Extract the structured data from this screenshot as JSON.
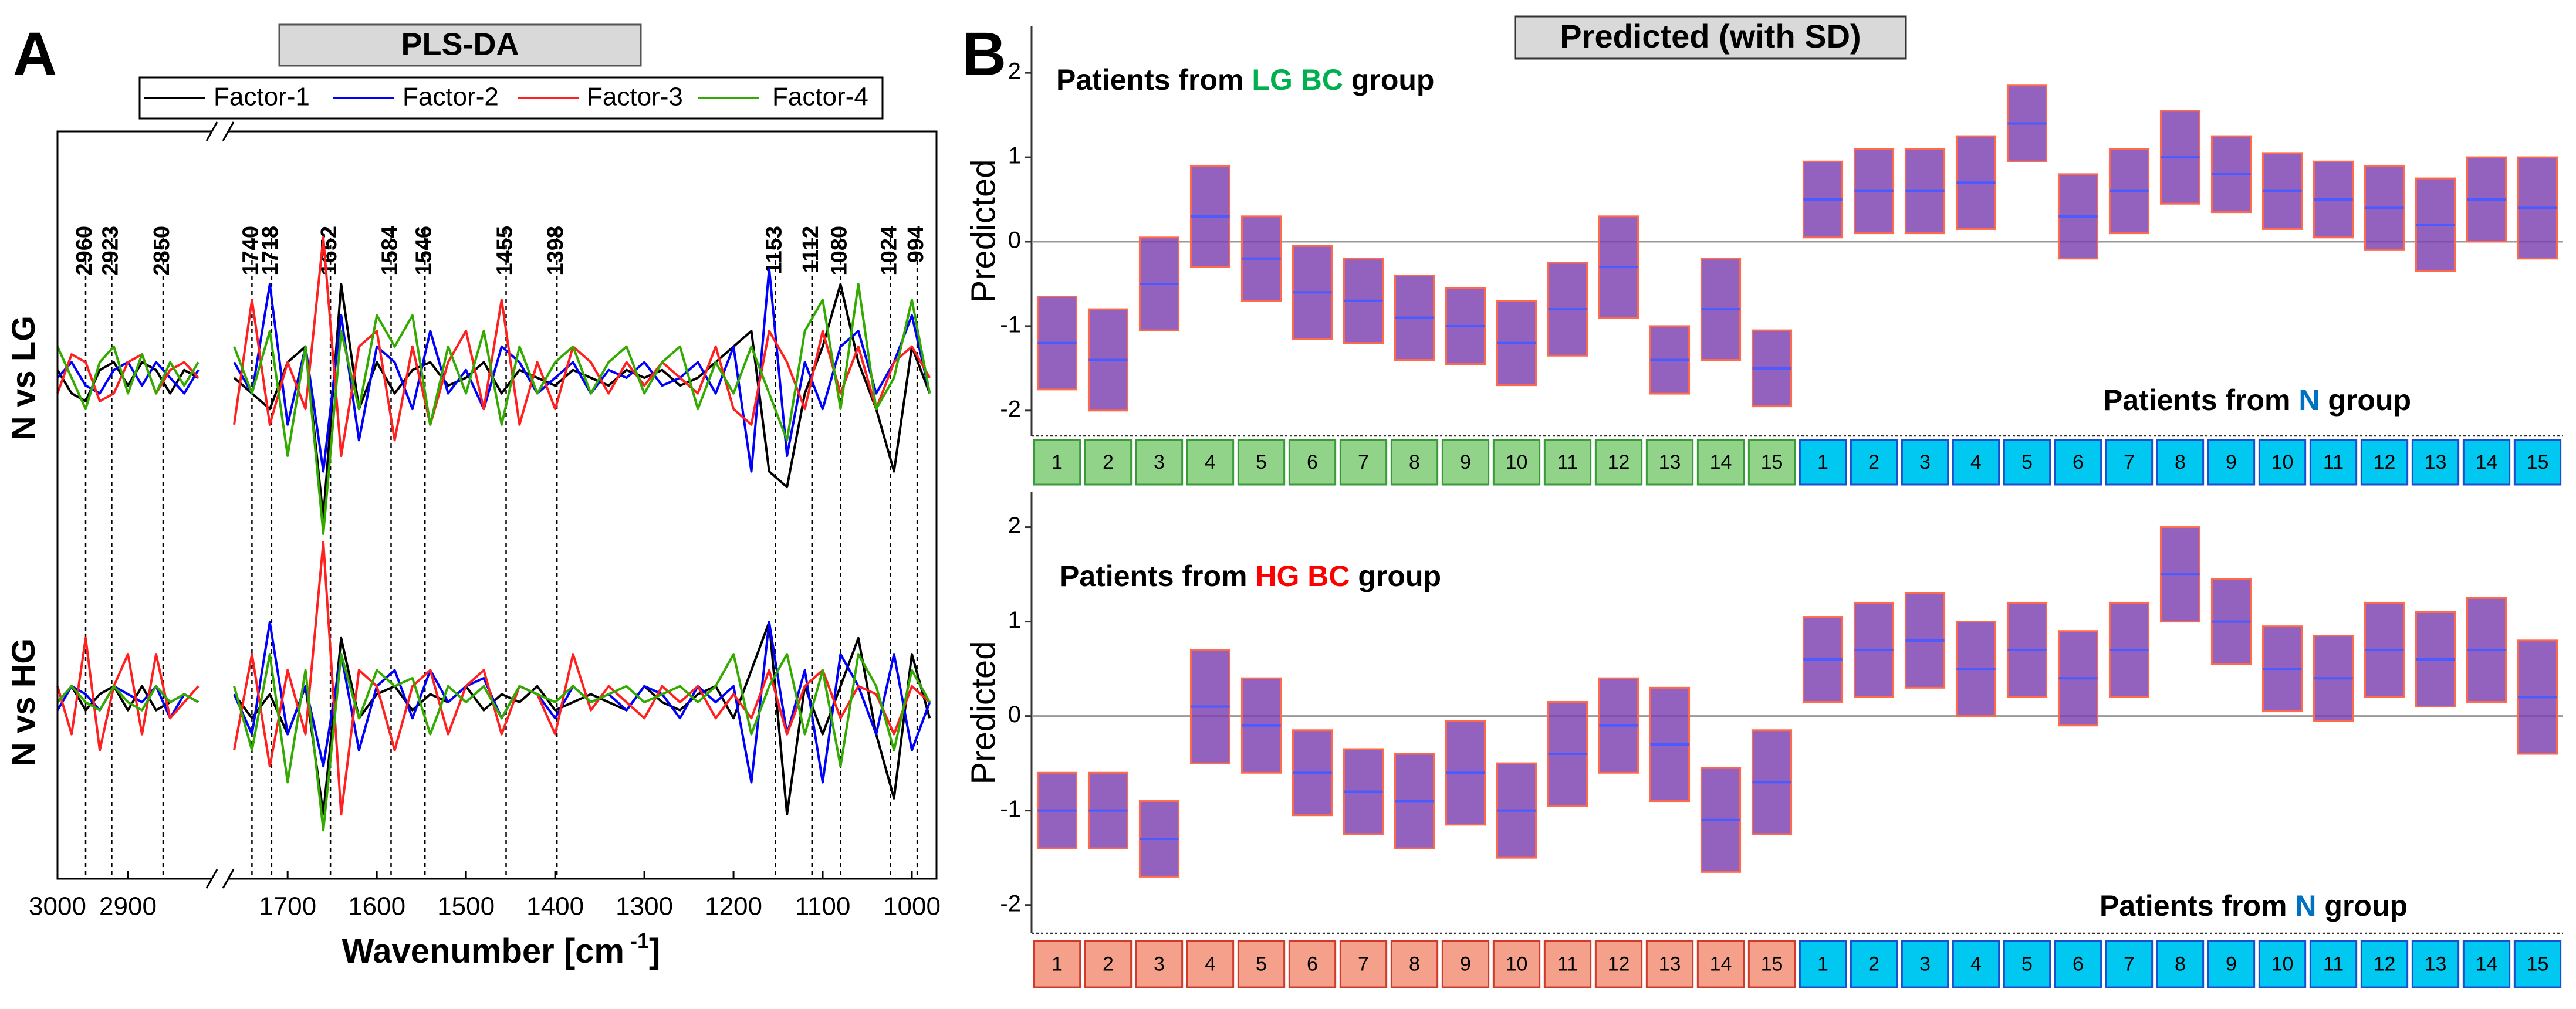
{
  "chart_data": [
    {
      "type": "line",
      "panel_label": "A",
      "title": "PLS-DA",
      "ylabel": "N vs LG",
      "x": [
        3000,
        2980,
        2960,
        2940,
        2920,
        2900,
        2880,
        2860,
        2840,
        2820,
        2800,
        1780,
        1760,
        1740,
        1720,
        1700,
        1680,
        1660,
        1640,
        1620,
        1600,
        1580,
        1560,
        1540,
        1520,
        1500,
        1480,
        1460,
        1440,
        1420,
        1400,
        1380,
        1360,
        1340,
        1320,
        1300,
        1280,
        1260,
        1240,
        1220,
        1200,
        1180,
        1160,
        1140,
        1120,
        1100,
        1080,
        1060,
        1040,
        1020,
        1000,
        980
      ],
      "series": [
        {
          "name": "Factor-1",
          "color": "#000000",
          "values": [
            0.05,
            -0.1,
            -0.15,
            0.05,
            0.1,
            -0.05,
            0.1,
            0.05,
            -0.1,
            0.05,
            0.0,
            null,
            0.0,
            -0.1,
            -0.2,
            0.1,
            0.2,
            -0.9,
            0.6,
            -0.2,
            0.1,
            -0.1,
            0.05,
            0.1,
            -0.05,
            0.0,
            0.1,
            -0.1,
            0.05,
            0.0,
            -0.05,
            0.05,
            0.0,
            -0.05,
            0.05,
            0.0,
            0.05,
            -0.05,
            0.0,
            0.1,
            0.2,
            0.3,
            -0.6,
            -0.7,
            -0.1,
            0.2,
            0.6,
            0.1,
            -0.2,
            -0.6,
            0.2,
            -0.1
          ]
        },
        {
          "name": "Factor-2",
          "color": "#0000ff",
          "values": [
            0.0,
            0.1,
            -0.05,
            -0.1,
            0.05,
            0.1,
            -0.05,
            0.1,
            0.0,
            -0.1,
            0.05,
            null,
            0.1,
            -0.1,
            0.6,
            -0.3,
            0.2,
            -0.6,
            0.4,
            -0.4,
            0.2,
            0.1,
            -0.2,
            0.3,
            -0.1,
            0.05,
            -0.2,
            0.2,
            0.1,
            -0.1,
            0.0,
            0.1,
            -0.1,
            0.05,
            0.0,
            0.1,
            -0.05,
            0.0,
            0.1,
            -0.1,
            0.2,
            -0.6,
            0.7,
            -0.5,
            0.1,
            -0.2,
            0.2,
            0.3,
            -0.1,
            0.1,
            0.4,
            -0.1
          ]
        },
        {
          "name": "Factor-3",
          "color": "#ff2020",
          "values": [
            -0.1,
            0.15,
            0.1,
            -0.15,
            -0.1,
            0.1,
            0.15,
            -0.1,
            0.05,
            0.1,
            0.0,
            null,
            -0.3,
            0.5,
            -0.3,
            0.1,
            -0.2,
            0.9,
            -0.5,
            0.2,
            0.3,
            -0.4,
            0.2,
            -0.3,
            0.1,
            0.3,
            -0.2,
            0.5,
            -0.3,
            0.1,
            -0.2,
            0.2,
            0.1,
            -0.1,
            0.1,
            -0.05,
            0.1,
            0.0,
            -0.1,
            0.2,
            -0.2,
            -0.3,
            0.3,
            0.1,
            -0.2,
            0.3,
            -0.1,
            0.2,
            -0.2,
            0.1,
            0.2,
            0.0
          ]
        },
        {
          "name": "Factor-4",
          "color": "#33aa00",
          "values": [
            0.2,
            0.0,
            -0.2,
            0.1,
            0.2,
            -0.1,
            0.15,
            -0.1,
            0.1,
            -0.05,
            0.1,
            null,
            0.2,
            -0.1,
            0.3,
            -0.5,
            0.2,
            -1.0,
            0.3,
            -0.2,
            0.4,
            0.2,
            0.4,
            -0.3,
            0.2,
            -0.1,
            0.3,
            -0.3,
            0.2,
            -0.1,
            0.1,
            0.2,
            -0.1,
            0.1,
            0.2,
            -0.1,
            0.1,
            0.2,
            -0.2,
            0.1,
            -0.1,
            0.2,
            -0.1,
            -0.4,
            0.3,
            0.5,
            -0.2,
            0.6,
            -0.2,
            0.0,
            0.5,
            -0.1
          ]
        }
      ],
      "ylim": [
        -1,
        1
      ],
      "xlim": [
        3000,
        975
      ],
      "x_break": [
        2790,
        1760
      ],
      "xmarkers": [
        2960,
        2923,
        2850,
        1740,
        1718,
        1652,
        1584,
        1546,
        1455,
        1398,
        1153,
        1112,
        1080,
        1024,
        994
      ]
    },
    {
      "type": "line",
      "ylabel": "N vs HG",
      "x": [
        3000,
        2980,
        2960,
        2940,
        2920,
        2900,
        2880,
        2860,
        2840,
        2820,
        2800,
        1780,
        1760,
        1740,
        1720,
        1700,
        1680,
        1660,
        1640,
        1620,
        1600,
        1580,
        1560,
        1540,
        1520,
        1500,
        1480,
        1460,
        1440,
        1420,
        1400,
        1380,
        1360,
        1340,
        1320,
        1300,
        1280,
        1260,
        1240,
        1220,
        1200,
        1180,
        1160,
        1140,
        1120,
        1100,
        1080,
        1060,
        1040,
        1020,
        1000,
        980
      ],
      "series": [
        {
          "color": "#000000",
          "values": [
            0.0,
            0.1,
            -0.05,
            0.05,
            0.1,
            -0.05,
            0.1,
            -0.05,
            0.0,
            0.05,
            0.0,
            null,
            0.05,
            -0.1,
            0.05,
            -0.2,
            0.1,
            -0.7,
            0.4,
            -0.1,
            0.05,
            0.1,
            -0.05,
            0.05,
            0.0,
            0.1,
            -0.05,
            0.05,
            0.0,
            0.1,
            -0.05,
            0.0,
            0.05,
            0.0,
            -0.05,
            0.1,
            0.0,
            -0.05,
            0.05,
            0.1,
            -0.1,
            0.2,
            0.5,
            -0.7,
            0.1,
            -0.2,
            0.1,
            0.4,
            -0.2,
            -0.6,
            0.3,
            -0.1
          ]
        },
        {
          "color": "#0000ff",
          "values": [
            -0.05,
            0.1,
            0.05,
            -0.05,
            0.1,
            0.05,
            0.0,
            0.1,
            -0.1,
            0.05,
            0.0,
            null,
            0.05,
            -0.2,
            0.5,
            -0.2,
            0.1,
            -0.4,
            0.3,
            -0.3,
            0.1,
            0.2,
            -0.1,
            0.2,
            0.0,
            0.1,
            0.15,
            -0.1,
            0.1,
            0.05,
            -0.1,
            0.1,
            0.0,
            0.05,
            -0.05,
            0.1,
            0.05,
            -0.1,
            0.1,
            0.0,
            0.1,
            -0.5,
            0.5,
            -0.2,
            0.2,
            -0.5,
            0.3,
            0.1,
            -0.2,
            0.3,
            -0.3,
            0.0
          ]
        },
        {
          "color": "#ff2020",
          "values": [
            0.1,
            -0.2,
            0.4,
            -0.3,
            0.1,
            0.3,
            -0.2,
            0.3,
            -0.1,
            0.0,
            0.1,
            null,
            -0.3,
            0.3,
            -0.4,
            0.2,
            -0.2,
            1.0,
            -0.7,
            0.2,
            0.1,
            -0.3,
            0.1,
            0.2,
            -0.2,
            0.1,
            0.2,
            -0.2,
            0.1,
            0.05,
            -0.2,
            0.3,
            -0.05,
            0.1,
            0.0,
            -0.1,
            0.1,
            0.0,
            0.1,
            -0.1,
            0.05,
            -0.1,
            0.2,
            -0.2,
            0.1,
            0.2,
            -0.1,
            0.1,
            0.05,
            -0.2,
            0.1,
            0.0
          ]
        },
        {
          "color": "#33aa00",
          "values": [
            0.0,
            0.1,
            0.0,
            -0.05,
            0.1,
            0.0,
            -0.05,
            0.1,
            0.0,
            0.05,
            0.0,
            null,
            0.1,
            -0.3,
            0.3,
            -0.5,
            0.2,
            -0.8,
            0.3,
            -0.1,
            0.2,
            0.1,
            0.15,
            -0.2,
            0.1,
            0.0,
            0.1,
            -0.1,
            0.1,
            0.05,
            0.0,
            0.1,
            0.0,
            0.05,
            0.1,
            0.0,
            0.05,
            0.1,
            0.0,
            0.1,
            0.3,
            -0.2,
            0.1,
            0.3,
            -0.2,
            0.2,
            -0.4,
            0.3,
            0.1,
            -0.3,
            0.2,
            0.0
          ]
        }
      ],
      "ylim": [
        -1,
        1
      ],
      "xlim": [
        3000,
        975
      ],
      "x_break": [
        2790,
        1760
      ],
      "xticks": [
        3000,
        2900,
        1700,
        1600,
        1500,
        1400,
        1300,
        1200,
        1100,
        1000
      ],
      "xlabel": [
        "Wavenumber [cm",
        "-1",
        "]"
      ]
    },
    {
      "type": "errorbar",
      "panel_label": "B",
      "title": "Predicted (with SD)",
      "ylabel": "Predicted",
      "ylim": [
        -2.3,
        2.55
      ],
      "yticks": [
        -2,
        -1,
        0,
        1,
        2
      ],
      "zero_line": true,
      "series": [
        {
          "categories": [
            "1",
            "2",
            "3",
            "4",
            "5",
            "6",
            "7",
            "8",
            "9",
            "10",
            "11",
            "12",
            "13",
            "14",
            "15"
          ],
          "box_color": "#92d38a",
          "box_stroke": "#3a9a3a",
          "color": "#7b3fb0",
          "error_color": "#ff6a4d",
          "values": [
            -1.2,
            -1.4,
            -0.5,
            0.3,
            -0.2,
            -0.6,
            -0.7,
            -0.9,
            -1.0,
            -1.2,
            -0.8,
            -0.3,
            -1.4,
            -0.8,
            -1.5
          ],
          "errors": [
            0.55,
            0.6,
            0.55,
            0.6,
            0.5,
            0.55,
            0.5,
            0.5,
            0.45,
            0.5,
            0.55,
            0.6,
            0.4,
            0.6,
            0.45
          ],
          "annotation": [
            "Patients from ",
            "LG BC",
            " group"
          ],
          "highlight_color": "#00b050"
        },
        {
          "categories": [
            "1",
            "2",
            "3",
            "4",
            "5",
            "6",
            "7",
            "8",
            "9",
            "10",
            "11",
            "12",
            "13",
            "14",
            "15"
          ],
          "box_color": "#00c8f0",
          "box_stroke": "#1a4fd0",
          "color": "#7b3fb0",
          "error_color": "#ff6a4d",
          "values": [
            0.5,
            0.6,
            0.6,
            0.7,
            1.4,
            0.3,
            0.6,
            1.0,
            0.8,
            0.6,
            0.5,
            0.4,
            0.2,
            0.5,
            0.4
          ],
          "errors": [
            0.45,
            0.5,
            0.5,
            0.55,
            0.45,
            0.5,
            0.5,
            0.55,
            0.45,
            0.45,
            0.45,
            0.5,
            0.55,
            0.5,
            0.6
          ],
          "annotation": [
            "Patients from ",
            "N",
            " group"
          ],
          "highlight_color": "#0070c0"
        }
      ]
    },
    {
      "type": "errorbar",
      "ylabel": "Predicted",
      "ylim": [
        -2.3,
        2.37
      ],
      "yticks": [
        -2,
        -1,
        0,
        1,
        2
      ],
      "zero_line": true,
      "series": [
        {
          "categories": [
            "1",
            "2",
            "3",
            "4",
            "5",
            "6",
            "7",
            "8",
            "9",
            "10",
            "11",
            "12",
            "13",
            "14",
            "15"
          ],
          "box_color": "#f4a08a",
          "box_stroke": "#d03a2a",
          "color": "#7b3fb0",
          "error_color": "#ff6a4d",
          "values": [
            -1.0,
            -1.0,
            -1.3,
            0.1,
            -0.1,
            -0.6,
            -0.8,
            -0.9,
            -0.6,
            -1.0,
            -0.4,
            -0.1,
            -0.3,
            -1.1,
            -0.7
          ],
          "errors": [
            0.4,
            0.4,
            0.4,
            0.6,
            0.5,
            0.45,
            0.45,
            0.5,
            0.55,
            0.5,
            0.55,
            0.5,
            0.6,
            0.55,
            0.55
          ],
          "annotation": [
            "Patients from ",
            "HG BC",
            " group"
          ],
          "highlight_color": "#ff0000"
        },
        {
          "categories": [
            "1",
            "2",
            "3",
            "4",
            "5",
            "6",
            "7",
            "8",
            "9",
            "10",
            "11",
            "12",
            "13",
            "14",
            "15"
          ],
          "box_color": "#00c8f0",
          "box_stroke": "#1a4fd0",
          "color": "#7b3fb0",
          "error_color": "#ff6a4d",
          "values": [
            0.6,
            0.7,
            0.8,
            0.5,
            0.7,
            0.4,
            0.7,
            1.5,
            1.0,
            0.5,
            0.4,
            0.7,
            0.6,
            0.7,
            0.2
          ],
          "errors": [
            0.45,
            0.5,
            0.5,
            0.5,
            0.5,
            0.5,
            0.5,
            0.5,
            0.45,
            0.45,
            0.45,
            0.5,
            0.5,
            0.55,
            0.6
          ],
          "annotation": [
            "Patients from ",
            "N",
            " group"
          ],
          "highlight_color": "#0070c0"
        }
      ]
    }
  ]
}
